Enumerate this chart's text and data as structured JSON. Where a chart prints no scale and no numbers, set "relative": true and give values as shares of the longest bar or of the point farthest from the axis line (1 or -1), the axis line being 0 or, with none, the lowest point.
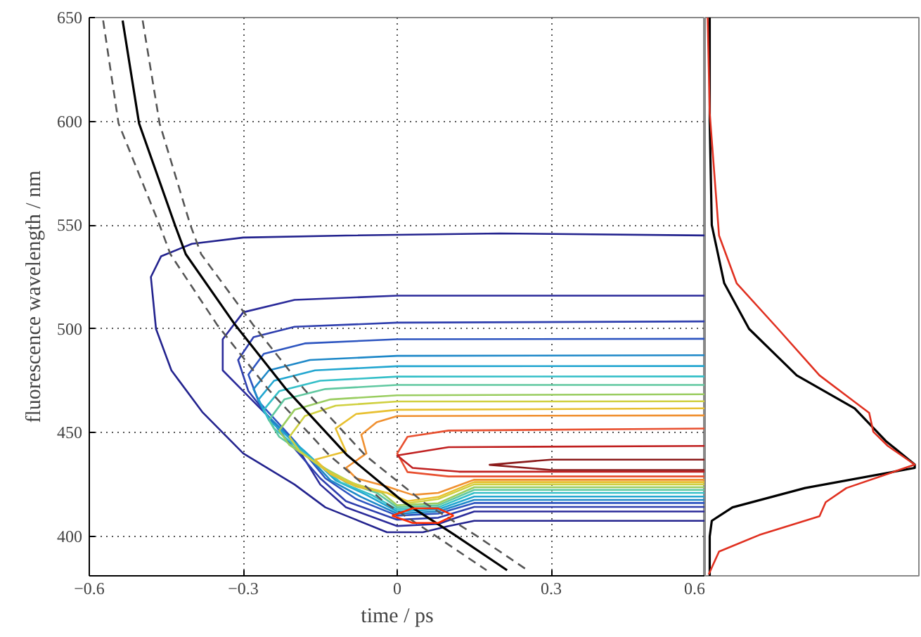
{
  "chart_data": [
    {
      "type": "line",
      "xlabel": "time / ps",
      "ylabel": "fluorescence wavelength / nm",
      "xlim": [
        -0.6,
        0.6
      ],
      "ylim": [
        381,
        650
      ],
      "xticks": [
        -0.6,
        -0.3,
        0,
        0.3,
        0.6
      ],
      "yticks": [
        400,
        450,
        500,
        550,
        600,
        650
      ],
      "grid": true,
      "marker": "none",
      "series": [
        {
          "color": "#23238e",
          "line_style": "solid",
          "x": [
            0.6,
            0.2,
            -0.1,
            -0.3,
            -0.4,
            -0.46,
            -0.48,
            -0.47,
            -0.44,
            -0.38,
            -0.3,
            -0.2,
            -0.14,
            -0.1,
            -0.02,
            0.05,
            0.1,
            0.15,
            0.6
          ],
          "values": [
            545,
            546,
            545,
            544,
            541,
            535,
            525,
            500,
            480,
            460,
            440,
            425,
            414,
            410,
            402,
            402,
            405,
            407.5,
            407.5
          ]
        },
        {
          "color": "#2b2b9a",
          "line_style": "solid",
          "x": [
            0.6,
            0.0,
            -0.2,
            -0.3,
            -0.34,
            -0.34,
            -0.28,
            -0.2,
            -0.15,
            -0.1,
            0.0,
            0.08,
            0.15,
            0.6
          ],
          "values": [
            516,
            516,
            514,
            508,
            495,
            480,
            465,
            445,
            425,
            414,
            405,
            406,
            412,
            412
          ]
        },
        {
          "color": "#2f3fae",
          "line_style": "solid",
          "x": [
            0.6,
            0.0,
            -0.2,
            -0.28,
            -0.31,
            -0.29,
            -0.22,
            -0.15,
            -0.1,
            0.0,
            0.08,
            0.15,
            0.6
          ],
          "values": [
            503.6,
            503,
            501,
            496,
            485,
            470,
            448,
            428,
            417,
            408,
            409,
            414.2,
            414.2
          ]
        },
        {
          "color": "#2d55c0",
          "line_style": "solid",
          "x": [
            0.6,
            0.0,
            -0.18,
            -0.26,
            -0.29,
            -0.27,
            -0.2,
            -0.14,
            -0.08,
            0.0,
            0.08,
            0.15,
            0.6
          ],
          "values": [
            495.2,
            495,
            493,
            488,
            478,
            465,
            446,
            428,
            418,
            410,
            411,
            416.1,
            416.1
          ]
        },
        {
          "color": "#1e88c8",
          "line_style": "solid",
          "x": [
            0.6,
            0.0,
            -0.17,
            -0.25,
            -0.28,
            -0.26,
            -0.19,
            -0.13,
            -0.07,
            0.0,
            0.08,
            0.15,
            0.6
          ],
          "values": [
            487.3,
            487,
            485,
            480,
            471,
            460,
            443,
            427,
            419,
            411,
            412,
            417.6,
            417.6
          ]
        },
        {
          "color": "#22a6d0",
          "line_style": "solid",
          "x": [
            0.6,
            0.0,
            -0.16,
            -0.24,
            -0.27,
            -0.25,
            -0.18,
            -0.12,
            -0.06,
            0.0,
            0.08,
            0.15,
            0.6
          ],
          "values": [
            482.1,
            482,
            480,
            475,
            466,
            456,
            441,
            427,
            420,
            412,
            413,
            419.2,
            419.2
          ]
        },
        {
          "color": "#35bfc8",
          "line_style": "solid",
          "x": [
            0.6,
            0.0,
            -0.15,
            -0.23,
            -0.26,
            -0.24,
            -0.17,
            -0.11,
            -0.05,
            0.0,
            0.08,
            0.15,
            0.6
          ],
          "values": [
            477.1,
            477,
            475,
            470,
            461,
            452,
            438,
            426,
            420,
            413,
            414,
            421,
            421
          ]
        },
        {
          "color": "#60c8a0",
          "line_style": "solid",
          "x": [
            0.6,
            0.0,
            -0.14,
            -0.22,
            -0.25,
            -0.23,
            -0.16,
            -0.1,
            -0.04,
            0.0,
            0.08,
            0.15,
            0.6
          ],
          "values": [
            473,
            473,
            471,
            466,
            456,
            448,
            436,
            426,
            421,
            414,
            415,
            422.4,
            422.4
          ]
        },
        {
          "color": "#9acd60",
          "line_style": "solid",
          "x": [
            0.6,
            0.0,
            -0.13,
            -0.2,
            -0.23,
            -0.21,
            -0.15,
            -0.09,
            -0.03,
            0.0,
            0.08,
            0.15,
            0.6
          ],
          "values": [
            468.5,
            468,
            466,
            461,
            451,
            444,
            434,
            426,
            421,
            415,
            416,
            423.7,
            423.7
          ]
        },
        {
          "color": "#d0d040",
          "line_style": "solid",
          "x": [
            0.6,
            0.0,
            -0.12,
            -0.18,
            -0.21,
            -0.19,
            -0.14,
            -0.08,
            -0.02,
            0.02,
            0.08,
            0.15,
            0.6
          ],
          "values": [
            465.1,
            465,
            463,
            458,
            448,
            441,
            432,
            425,
            421,
            416,
            418,
            425.1,
            425.1
          ]
        },
        {
          "color": "#e8c030",
          "line_style": "solid",
          "x": [
            0.6,
            0.0,
            -0.08,
            -0.12,
            -0.1,
            -0.16,
            -0.13,
            -0.08,
            -0.02,
            0.02,
            0.08,
            0.15,
            0.6
          ],
          "values": [
            461.7,
            461,
            459,
            452,
            441,
            437,
            430,
            424,
            421,
            417,
            419,
            426.2,
            426.2
          ]
        },
        {
          "color": "#f09030",
          "line_style": "solid",
          "x": [
            0.6,
            0.0,
            -0.04,
            -0.07,
            -0.06,
            -0.1,
            -0.08,
            -0.02,
            0.03,
            0.08,
            0.15,
            0.6
          ],
          "values": [
            458.3,
            458,
            455,
            449,
            440,
            433,
            428,
            424,
            420,
            421,
            427.3,
            427.3
          ]
        },
        {
          "color": "#e85030",
          "line_style": "solid",
          "x": [
            0.6,
            0.1,
            0.02,
            0.0,
            0.02,
            0.1,
            0.6
          ],
          "values": [
            452,
            451,
            448,
            440,
            431,
            428.9,
            428.9
          ]
        },
        {
          "color": "#c02020",
          "line_style": "solid",
          "x": [
            0.6,
            0.1,
            0.0,
            0.03,
            0.12,
            0.6
          ],
          "values": [
            443.6,
            443,
            439,
            433,
            431.2,
            431.2
          ]
        },
        {
          "color": "#8b1a1a",
          "line_style": "solid",
          "x": [
            0.6,
            0.3,
            0.18,
            0.3,
            0.6
          ],
          "values": [
            437,
            437,
            434.5,
            432,
            432
          ]
        },
        {
          "color": "#000000",
          "line_style": "solid",
          "x": [
            -0.535,
            -0.503,
            -0.433,
            -0.412,
            -0.316,
            -0.216,
            -0.097,
            0.013,
            0.112,
            0.214
          ],
          "values": [
            648.6,
            599,
            550,
            536,
            502,
            470.8,
            439,
            416.5,
            400.7,
            383.7
          ]
        },
        {
          "color": "#555555",
          "line_style": "dashed",
          "x": [
            -0.573,
            -0.543,
            -0.463,
            -0.442,
            -0.351,
            -0.251,
            -0.132,
            -0.025,
            0.072,
            0.174
          ],
          "values": [
            648.6,
            599,
            550,
            536,
            502,
            470.8,
            439,
            416.5,
            400.7,
            383.7
          ]
        },
        {
          "color": "#555555",
          "line_style": "dashed",
          "x": [
            -0.496,
            -0.463,
            -0.403,
            -0.382,
            -0.281,
            -0.181,
            -0.062,
            0.051,
            0.152,
            0.254
          ],
          "values": [
            648.6,
            599,
            550,
            536,
            502,
            470.8,
            439,
            416.5,
            400.7,
            383.7
          ]
        },
        {
          "color": "#ff2a00",
          "line_style": "solid",
          "x": [
            -0.01,
            0.03,
            0.08,
            0.11
          ],
          "values": [
            410,
            413.5,
            413.5,
            410
          ]
        },
        {
          "color": "#ff2a00",
          "line_style": "solid",
          "x": [
            -0.01,
            0.03,
            0.08,
            0.11
          ],
          "values": [
            410,
            406.5,
            406.5,
            410
          ]
        }
      ]
    },
    {
      "type": "line",
      "orientation": "horizontal",
      "relative": true,
      "ylim": [
        381,
        650
      ],
      "tick_labels": false,
      "grid": false,
      "marker": "none",
      "series": [
        {
          "color": "#000000",
          "line_style": "solid",
          "x": [
            650,
            600,
            550,
            522,
            500,
            477.6,
            461.7,
            446,
            434.6,
            433,
            423.3,
            414,
            407.5,
            400,
            381
          ],
          "values": [
            0.01,
            0.01,
            0.02,
            0.08,
            0.2,
            0.43,
            0.71,
            0.86,
            1.0,
            1.0,
            0.47,
            0.12,
            0.02,
            0.01,
            0.01
          ]
        },
        {
          "color": "#e03020",
          "line_style": "solid",
          "x": [
            650,
            604,
            545,
            522,
            500,
            477.6,
            466.3,
            459.5,
            450.4,
            443.6,
            434.6,
            423.3,
            416.5,
            409.7,
            400.7,
            392.7,
            381.7
          ],
          "values": [
            0.0,
            0.01,
            0.055,
            0.14,
            0.34,
            0.54,
            0.69,
            0.78,
            0.8,
            0.87,
            1.0,
            0.67,
            0.57,
            0.54,
            0.25,
            0.055,
            0.005
          ]
        }
      ]
    }
  ]
}
